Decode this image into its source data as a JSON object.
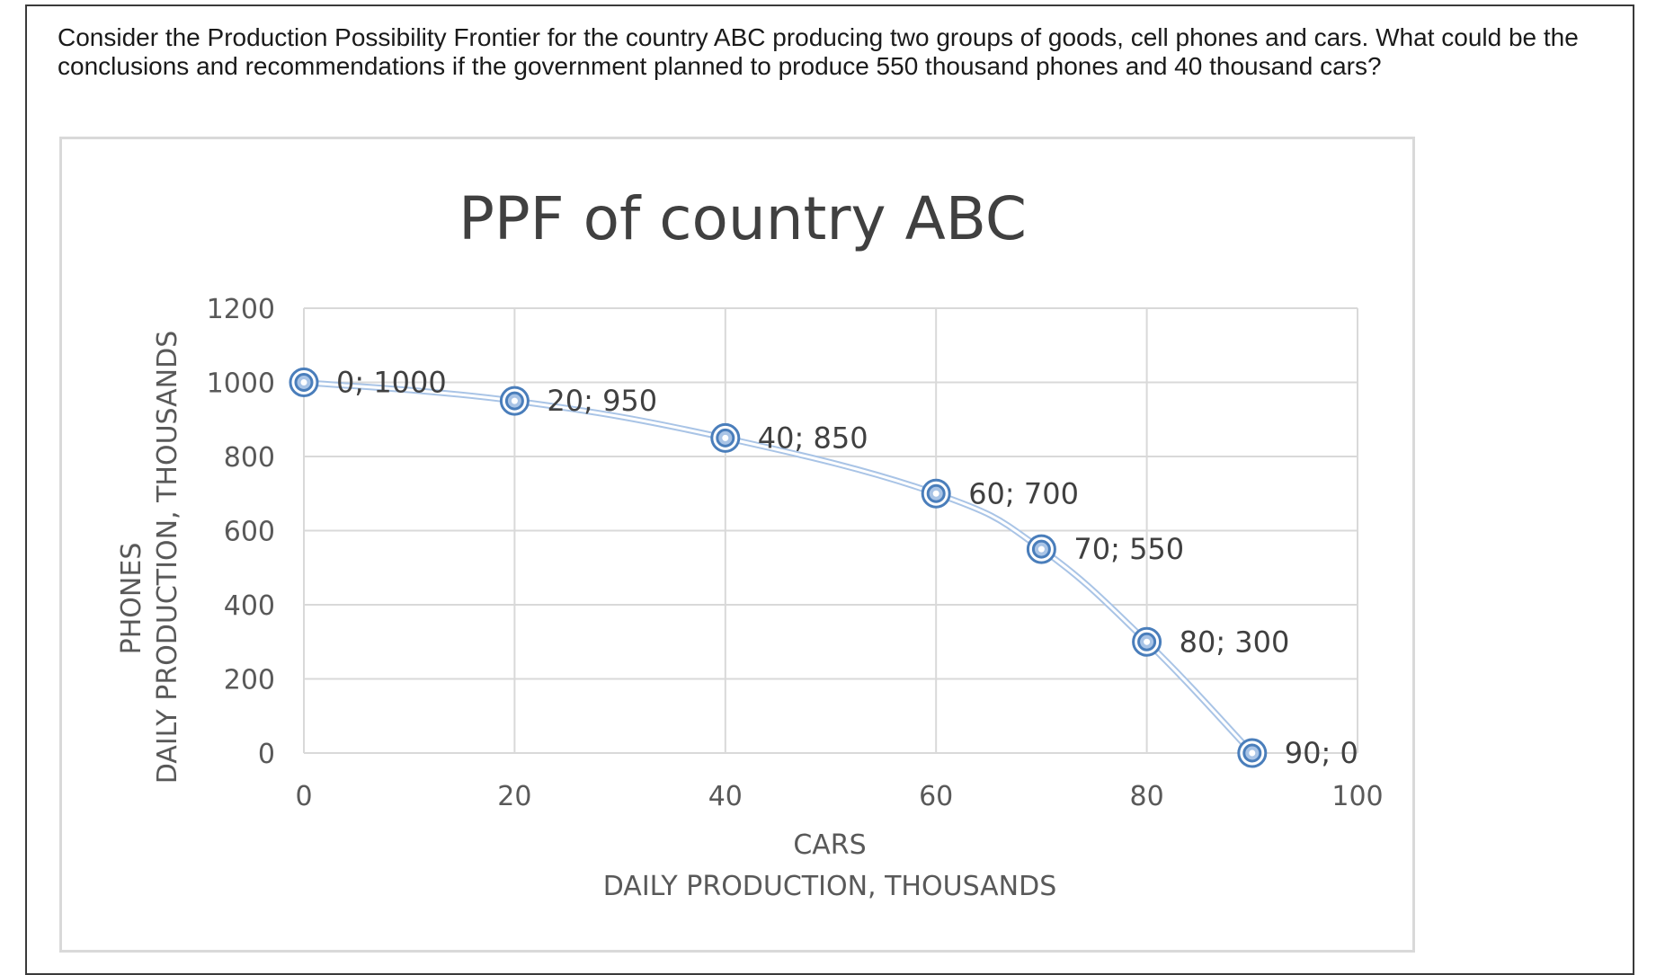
{
  "question": {
    "line1": "Consider the Production Possibility Frontier for the country ABC producing two groups of goods, cell phones and cars. What could be the",
    "line2": "conclusions and recommendations if the government planned to produce 550 thousand phones and 40 thousand cars?"
  },
  "chart_data": {
    "type": "scatter",
    "title": "PPF of country ABC",
    "xlabel": [
      "CARS",
      "DAILY PRODUCTION, THOUSANDS"
    ],
    "ylabel": [
      "PHONES",
      "DAILY PRODUCTION, THOUSANDS"
    ],
    "xlim": [
      0,
      100
    ],
    "ylim": [
      0,
      1200
    ],
    "xticks": [
      0,
      20,
      40,
      60,
      80,
      100
    ],
    "yticks": [
      0,
      200,
      400,
      600,
      800,
      1000,
      1200
    ],
    "grid": true,
    "legend": "none",
    "marker": "double-ring",
    "line": "smooth",
    "series": [
      {
        "x": [
          0,
          20,
          40,
          60,
          70,
          80,
          90
        ],
        "y": [
          1000,
          950,
          850,
          700,
          550,
          300,
          0
        ],
        "labels": [
          "0; 1000",
          "20; 950",
          "40; 850",
          "60; 700",
          "70; 550",
          "80; 300",
          "90; 0"
        ]
      }
    ],
    "colors": {
      "series": "#4a7ebb",
      "series_light": "#a9c4e6",
      "grid": "#d9d9d9",
      "text": "#595959",
      "title": "#404040"
    }
  }
}
